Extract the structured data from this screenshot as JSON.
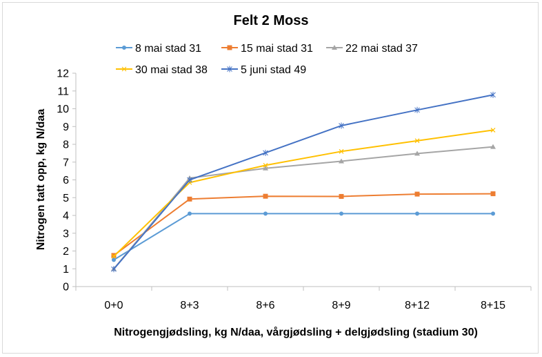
{
  "chart_data": {
    "type": "line",
    "title": "Felt 2 Moss",
    "xlabel": "Nitrogengjødsling, kg N/daa, vårgjødsling + delgjødsling (stadium 30)",
    "ylabel": "Nitrogen tatt opp, kg N/daa",
    "categories": [
      "0+0",
      "8+3",
      "8+6",
      "8+9",
      "8+12",
      "8+15"
    ],
    "ylim": [
      0,
      12
    ],
    "yticks": [
      0,
      1,
      2,
      3,
      4,
      5,
      6,
      7,
      8,
      9,
      10,
      11,
      12
    ],
    "grid": false,
    "legend_position": "top",
    "series": [
      {
        "name": "8 mai stad 31",
        "color": "#5b9bd5",
        "marker": "circle",
        "values": [
          1.5,
          4.1,
          4.1,
          4.1,
          4.1,
          4.1
        ]
      },
      {
        "name": "15 mai stad 31",
        "color": "#ed7d31",
        "marker": "square",
        "values": [
          1.75,
          4.92,
          5.08,
          5.07,
          5.2,
          5.22
        ]
      },
      {
        "name": "22 mai stad 37",
        "color": "#a5a5a5",
        "marker": "triangle",
        "values": [
          1.0,
          6.1,
          6.65,
          7.05,
          7.48,
          7.86
        ]
      },
      {
        "name": "30 mai stad 38",
        "color": "#ffc000",
        "marker": "x",
        "values": [
          1.7,
          5.85,
          6.82,
          7.6,
          8.2,
          8.8
        ]
      },
      {
        "name": "5 juni stad 49",
        "color": "#4472c4",
        "marker": "star",
        "values": [
          0.98,
          6.0,
          7.52,
          9.05,
          9.93,
          10.78
        ]
      }
    ]
  }
}
